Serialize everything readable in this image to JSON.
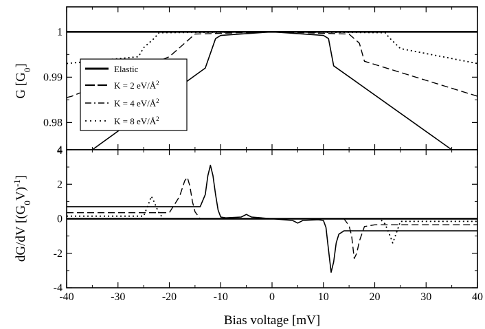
{
  "chart_data": [
    {
      "type": "line",
      "ylabel": "G [G",
      "ylabel_sub": "0",
      "ylabel_tail": "]",
      "xlim": [
        -40,
        40
      ],
      "ylim": [
        0.974,
        1.0055
      ],
      "x_ticks": [
        -40,
        -30,
        -20,
        -10,
        0,
        10,
        20,
        30,
        40
      ],
      "y_ticks": [
        0.98,
        0.99,
        1
      ],
      "y_tick_labels": [
        "0.98",
        "0.99",
        "1"
      ],
      "legend": {
        "position": "left",
        "entries": [
          {
            "label": "Elastic",
            "series": "elastic"
          },
          {
            "label": "K = 2 eV/Å",
            "sup": "2",
            "series": "k2"
          },
          {
            "label": "K = 4 eV/Å",
            "sup": "2",
            "series": "k4"
          },
          {
            "label": "K = 8 eV/Å",
            "sup": "2",
            "series": "k8"
          }
        ]
      },
      "series": [
        {
          "id": "elastic",
          "style": "solid-thick",
          "x": [
            -40,
            40
          ],
          "y": [
            1.0,
            1.0
          ]
        },
        {
          "id": "k2",
          "style": "solid",
          "x": [
            -40,
            -35,
            -13,
            -11,
            -10,
            0,
            10,
            11,
            12,
            35,
            40
          ],
          "y": [
            0.972,
            0.974,
            0.992,
            0.9985,
            0.9992,
            1.0,
            0.9992,
            0.9985,
            0.9925,
            0.974,
            0.972
          ]
        },
        {
          "id": "k4",
          "style": "dashed",
          "x": [
            -40,
            -39,
            -20,
            -17,
            -15,
            0,
            15,
            17,
            18,
            40
          ],
          "y": [
            0.9855,
            0.9858,
            0.9945,
            0.9975,
            0.9995,
            1.0,
            0.9995,
            0.9975,
            0.9935,
            0.9858
          ]
        },
        {
          "id": "k8",
          "style": "dotted",
          "x": [
            -40,
            -26,
            -25,
            -23,
            -22,
            0,
            22,
            23,
            25,
            40
          ],
          "y": [
            0.993,
            0.9945,
            0.9965,
            0.9985,
            0.9998,
            1.0,
            0.9998,
            0.9985,
            0.9963,
            0.993
          ]
        }
      ]
    },
    {
      "type": "line",
      "xlabel": "Bias voltage [mV]",
      "ylabel": "dG/dV [(G",
      "ylabel_sub": "0",
      "ylabel_mid": "V)",
      "ylabel_sup": "-1",
      "ylabel_tail": "]",
      "xlim": [
        -40,
        40
      ],
      "ylim": [
        -4,
        4
      ],
      "x_ticks": [
        -40,
        -30,
        -20,
        -10,
        0,
        10,
        20,
        30,
        40
      ],
      "y_ticks": [
        -4,
        -2,
        0,
        2,
        4
      ],
      "series": [
        {
          "id": "elastic",
          "style": "solid-thick",
          "x": [
            -40,
            40
          ],
          "y": [
            0,
            0
          ]
        },
        {
          "id": "k2",
          "style": "solid",
          "x": [
            -40,
            -14,
            -13,
            -12.5,
            -12,
            -11.5,
            -11,
            -10.5,
            -10,
            -9,
            -6,
            -5,
            -4,
            0,
            4,
            5,
            6,
            9,
            10,
            10.5,
            11,
            11.5,
            12,
            12.5,
            13,
            14,
            40
          ],
          "y": [
            0.7,
            0.7,
            1.4,
            2.5,
            3.1,
            2.5,
            1.4,
            0.5,
            0.1,
            0.05,
            0.1,
            0.25,
            0.1,
            0,
            -0.1,
            -0.25,
            -0.1,
            -0.05,
            -0.1,
            -0.5,
            -1.8,
            -3.1,
            -2.5,
            -1.4,
            -0.9,
            -0.7,
            -0.7
          ]
        },
        {
          "id": "k4",
          "style": "dashed",
          "x": [
            -40,
            -20,
            -18,
            -17,
            -16.5,
            -16,
            -15.5,
            -15,
            -14,
            0,
            14,
            15,
            15.5,
            16,
            16.5,
            17,
            18,
            20,
            40
          ],
          "y": [
            0.35,
            0.35,
            1.3,
            2.2,
            2.4,
            1.9,
            1.0,
            0.4,
            0,
            0,
            0,
            -0.4,
            -1.0,
            -2.3,
            -2.0,
            -1.3,
            -0.45,
            -0.35,
            -0.35
          ]
        },
        {
          "id": "k8",
          "style": "dotted",
          "x": [
            -40,
            -25,
            -24,
            -23.5,
            -23,
            -22,
            -21,
            0,
            21,
            22,
            23,
            23.5,
            24,
            25,
            40
          ],
          "y": [
            0.15,
            0.15,
            0.9,
            1.3,
            1.0,
            0.3,
            0,
            0,
            0,
            -0.3,
            -1.0,
            -1.4,
            -1.0,
            -0.15,
            -0.15
          ]
        }
      ]
    }
  ]
}
